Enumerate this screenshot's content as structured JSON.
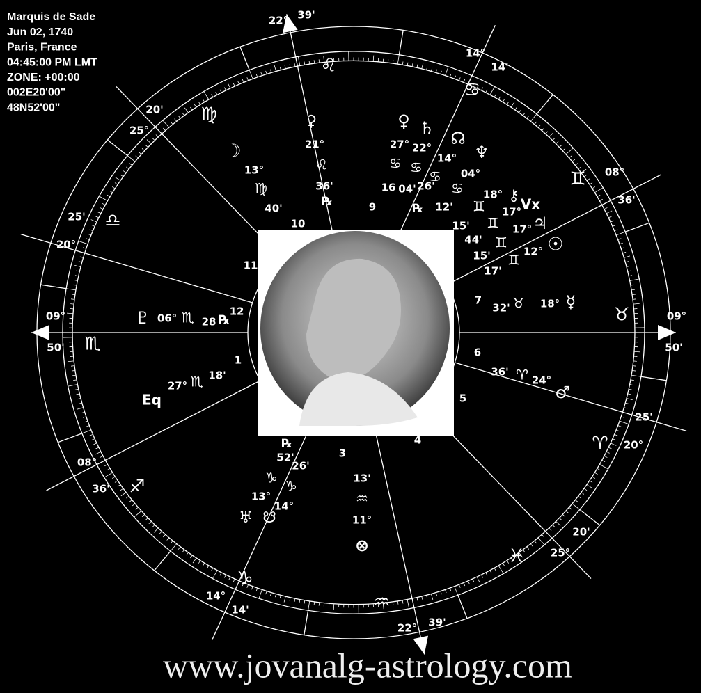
{
  "header": [
    "Marquis de Sade",
    "Jun 02, 1740",
    "Paris, France",
    "04:45:00 PM LMT",
    "ZONE: +00:00",
    "002E20'00\"",
    "48N52'00\""
  ],
  "cusp_labels": [
    "22°",
    "39'",
    "22°",
    "39'",
    "09°",
    "50'",
    "09°",
    "50'",
    "20'",
    "25°",
    "25'",
    "20°",
    "14°",
    "14'",
    "08°",
    "36'",
    "08°",
    "36'",
    "14°",
    "14'",
    "25'",
    "20°",
    "20'",
    "25°"
  ],
  "signs": [
    "♌",
    "♋",
    "♊",
    "♉",
    "♈",
    "♓",
    "♒",
    "♑",
    "♐",
    "♏",
    "♎",
    "♍"
  ],
  "house_numbers": [
    "9",
    "10",
    "11",
    "12",
    "1",
    "3",
    "4",
    "5",
    "6",
    "7"
  ],
  "planet_labels": [
    "♇",
    "06°",
    "♏",
    "28",
    "℞",
    "Eq",
    "27°",
    "♏",
    "18'",
    "☽",
    "13°",
    "♍",
    "40'",
    "⚳",
    "21°",
    "♌",
    "36'",
    "℞",
    "♀",
    "27°",
    "♋",
    "16",
    "04'",
    "♄",
    "22°",
    "♋",
    "26'",
    "℞",
    "☊",
    "14°",
    "♋",
    "12'",
    "♆",
    "04°",
    "♋",
    "⚷",
    "18°",
    "♊",
    "15'",
    "Vx",
    "17°",
    "♊",
    "44'",
    "♃",
    "17°",
    "♊",
    "15'",
    "☉",
    "12°",
    "♊",
    "17'",
    "☿",
    "18°",
    "♉",
    "32'",
    "♂",
    "24°",
    "♈",
    "36'",
    "℞",
    "52'",
    "26'",
    "♑",
    "♑",
    "13°",
    "14°",
    "♅",
    "☋",
    "13'",
    "♒",
    "11°",
    "⊗"
  ],
  "watermark": "www.jovanalg-astrology.com"
}
